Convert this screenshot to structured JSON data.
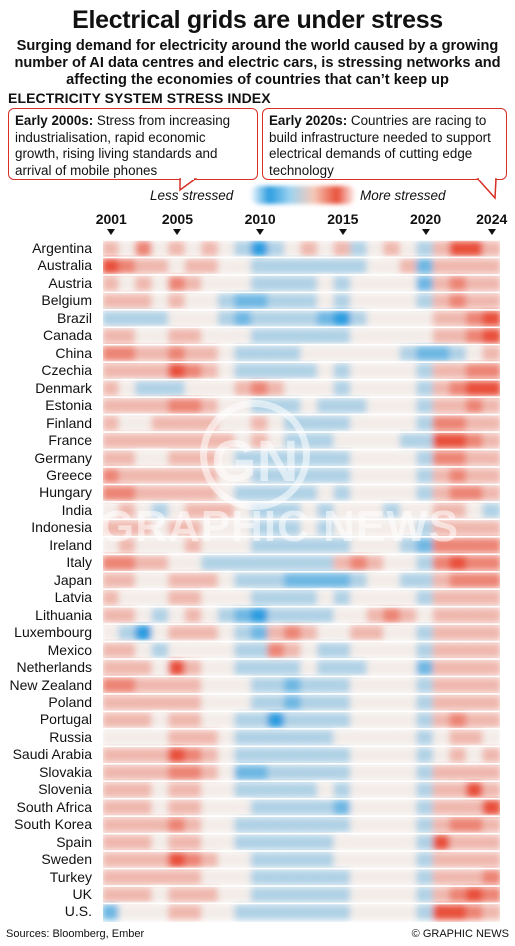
{
  "header": {
    "title": "Electrical grids are under stress",
    "subtitle": "Surging demand for electricity around the world caused by a growing number of AI data centres and electric cars, is stressing networks and affecting the economies of countries that can’t keep up",
    "section_label": "ELECTRICITY SYSTEM STRESS INDEX"
  },
  "annotations": {
    "left_bold": "Early 2000s:",
    "left_text": " Stress from increasing industrialisation, rapid economic growth, rising living standards and arrival of mobile phones",
    "right_bold": "Early 2020s:",
    "right_text": " Countries are racing to build infrastructure needed to support electrical demands of cutting edge technology"
  },
  "legend": {
    "low_label": "Less stressed",
    "high_label": "More stressed",
    "low_color": "#2b9ce0",
    "high_color": "#e8503a"
  },
  "footer": {
    "sources": "Sources: Bloomberg, Ember",
    "credit": "© GRAPHIC NEWS"
  },
  "watermark": {
    "logo": "GN",
    "text": "GRAPHIC NEWS"
  },
  "chart_data": {
    "type": "heatmap",
    "title": "ELECTRICITY SYSTEM STRESS INDEX",
    "x": [
      2001,
      2002,
      2003,
      2004,
      2005,
      2006,
      2007,
      2008,
      2009,
      2010,
      2011,
      2012,
      2013,
      2014,
      2015,
      2016,
      2017,
      2018,
      2019,
      2020,
      2021,
      2022,
      2023,
      2024
    ],
    "x_tick_labels": [
      "2001",
      "2005",
      "2010",
      "2015",
      "2020",
      "2024"
    ],
    "x_tick_values": [
      2001,
      2005,
      2010,
      2015,
      2020,
      2024
    ],
    "value_range": [
      -3,
      3
    ],
    "colors": {
      "low": "#2b9ce0",
      "mid": "#f3ece8",
      "high": "#e8503a"
    },
    "rows": [
      {
        "country": "Argentina",
        "values": [
          1,
          0,
          2,
          0,
          1,
          0,
          1,
          0,
          -1,
          -3,
          -1,
          0,
          1,
          0,
          1,
          -1,
          0,
          1,
          0,
          -1,
          1,
          3,
          3,
          1
        ]
      },
      {
        "country": "Australia",
        "values": [
          3,
          2,
          1,
          1,
          0,
          1,
          1,
          0,
          0,
          -1,
          -1,
          -1,
          -1,
          -1,
          -1,
          -1,
          0,
          0,
          1,
          -2,
          1,
          1,
          1,
          1
        ]
      },
      {
        "country": "Austria",
        "values": [
          1,
          0,
          1,
          0,
          2,
          1,
          0,
          0,
          0,
          -1,
          -1,
          -1,
          -1,
          0,
          -1,
          0,
          0,
          0,
          0,
          -2,
          1,
          2,
          1,
          1
        ]
      },
      {
        "country": "Belgium",
        "values": [
          1,
          1,
          1,
          0,
          1,
          0,
          0,
          -1,
          -2,
          -2,
          -1,
          -1,
          -1,
          0,
          -1,
          0,
          0,
          0,
          0,
          -1,
          1,
          2,
          1,
          1
        ]
      },
      {
        "country": "Brazil",
        "values": [
          -1,
          -1,
          -1,
          -1,
          0,
          0,
          0,
          -1,
          -2,
          -1,
          -1,
          -1,
          -1,
          -2,
          -3,
          -1,
          0,
          0,
          0,
          0,
          1,
          1,
          2,
          3
        ]
      },
      {
        "country": "Canada",
        "values": [
          1,
          1,
          0,
          0,
          1,
          1,
          0,
          0,
          0,
          -1,
          -1,
          -1,
          -1,
          -1,
          -1,
          0,
          0,
          0,
          0,
          0,
          1,
          1,
          2,
          3
        ]
      },
      {
        "country": "China",
        "values": [
          2,
          2,
          1,
          1,
          2,
          1,
          1,
          0,
          -1,
          -1,
          -1,
          -1,
          0,
          0,
          0,
          0,
          0,
          0,
          -1,
          -2,
          -2,
          -1,
          0,
          1
        ]
      },
      {
        "country": "Czechia",
        "values": [
          1,
          1,
          1,
          1,
          3,
          2,
          1,
          0,
          -1,
          -1,
          -1,
          -1,
          -1,
          0,
          -1,
          0,
          0,
          0,
          0,
          -1,
          1,
          1,
          2,
          2
        ]
      },
      {
        "country": "Denmark",
        "values": [
          1,
          0,
          -1,
          -1,
          -1,
          0,
          0,
          0,
          1,
          2,
          1,
          0,
          0,
          0,
          -1,
          0,
          0,
          0,
          0,
          -1,
          1,
          2,
          3,
          3
        ]
      },
      {
        "country": "Estonia",
        "values": [
          1,
          1,
          1,
          1,
          2,
          2,
          1,
          0,
          0,
          -1,
          -1,
          -1,
          0,
          -1,
          -1,
          -1,
          0,
          0,
          0,
          -1,
          1,
          1,
          2,
          1
        ]
      },
      {
        "country": "Finland",
        "values": [
          1,
          0,
          0,
          1,
          1,
          1,
          1,
          0,
          0,
          1,
          0,
          -1,
          -1,
          -1,
          -1,
          0,
          0,
          0,
          0,
          -1,
          2,
          2,
          1,
          1
        ]
      },
      {
        "country": "France",
        "values": [
          1,
          1,
          1,
          1,
          1,
          1,
          1,
          1,
          0,
          1,
          0,
          -1,
          -1,
          -1,
          0,
          0,
          0,
          0,
          -1,
          -1,
          3,
          3,
          2,
          1
        ]
      },
      {
        "country": "Germany",
        "values": [
          1,
          1,
          0,
          0,
          1,
          1,
          1,
          0,
          -1,
          -1,
          -1,
          -1,
          -1,
          -1,
          -1,
          0,
          0,
          0,
          0,
          -1,
          2,
          2,
          1,
          1
        ]
      },
      {
        "country": "Greece",
        "values": [
          2,
          1,
          1,
          1,
          1,
          1,
          1,
          0,
          0,
          -1,
          -1,
          -1,
          -1,
          -1,
          -1,
          0,
          0,
          0,
          0,
          -1,
          1,
          2,
          1,
          1
        ]
      },
      {
        "country": "Hungary",
        "values": [
          2,
          2,
          1,
          1,
          1,
          1,
          1,
          0,
          -1,
          -1,
          -1,
          -1,
          -1,
          0,
          -1,
          0,
          0,
          0,
          0,
          -1,
          1,
          2,
          2,
          1
        ]
      },
      {
        "country": "India",
        "values": [
          0,
          1,
          0,
          -1,
          0,
          1,
          1,
          1,
          0,
          -1,
          -1,
          -1,
          0,
          -1,
          0,
          0,
          0,
          -1,
          0,
          0,
          1,
          1,
          0,
          -1
        ]
      },
      {
        "country": "Indonesia",
        "values": [
          1,
          1,
          1,
          0,
          1,
          1,
          0,
          0,
          0,
          -1,
          -1,
          -1,
          0,
          -1,
          0,
          0,
          0,
          0,
          0,
          -1,
          1,
          1,
          1,
          1
        ]
      },
      {
        "country": "Ireland",
        "values": [
          0,
          1,
          0,
          0,
          0,
          1,
          0,
          0,
          0,
          -1,
          -1,
          -1,
          -1,
          -1,
          -1,
          0,
          0,
          0,
          -1,
          -2,
          2,
          2,
          2,
          2
        ]
      },
      {
        "country": "Italy",
        "values": [
          2,
          2,
          1,
          1,
          0,
          0,
          -1,
          -1,
          -1,
          -1,
          -1,
          -1,
          -1,
          -1,
          1,
          2,
          1,
          0,
          0,
          -1,
          2,
          3,
          2,
          2
        ]
      },
      {
        "country": "Japan",
        "values": [
          1,
          1,
          0,
          0,
          1,
          1,
          1,
          0,
          -1,
          -1,
          -1,
          -2,
          -2,
          -2,
          -2,
          -1,
          0,
          0,
          -1,
          -1,
          1,
          2,
          2,
          2
        ]
      },
      {
        "country": "Latvia",
        "values": [
          1,
          0,
          0,
          0,
          1,
          1,
          0,
          0,
          0,
          -1,
          -1,
          -1,
          -1,
          0,
          -1,
          0,
          0,
          0,
          0,
          -1,
          1,
          1,
          1,
          1
        ]
      },
      {
        "country": "Lithuania",
        "values": [
          1,
          1,
          0,
          -1,
          0,
          1,
          0,
          -1,
          -2,
          -3,
          -1,
          -1,
          -1,
          -1,
          0,
          0,
          1,
          2,
          1,
          0,
          1,
          1,
          1,
          1
        ]
      },
      {
        "country": "Luxembourg",
        "values": [
          0,
          -1,
          -3,
          0,
          1,
          1,
          1,
          0,
          -1,
          -2,
          1,
          2,
          1,
          0,
          0,
          1,
          1,
          0,
          0,
          -1,
          1,
          1,
          1,
          1
        ]
      },
      {
        "country": "Mexico",
        "values": [
          1,
          1,
          0,
          -1,
          0,
          0,
          0,
          0,
          -1,
          -1,
          2,
          1,
          0,
          -1,
          -1,
          0,
          0,
          0,
          0,
          -1,
          1,
          1,
          1,
          1
        ]
      },
      {
        "country": "Netherlands",
        "values": [
          1,
          1,
          1,
          0,
          3,
          1,
          0,
          0,
          -1,
          -1,
          -1,
          -1,
          0,
          -1,
          -1,
          -1,
          0,
          0,
          0,
          -2,
          1,
          1,
          1,
          1
        ]
      },
      {
        "country": "New Zealand",
        "values": [
          2,
          2,
          1,
          1,
          1,
          1,
          0,
          0,
          0,
          -1,
          -1,
          -2,
          -1,
          -1,
          -1,
          0,
          0,
          0,
          0,
          -1,
          1,
          1,
          1,
          1
        ]
      },
      {
        "country": "Poland",
        "values": [
          1,
          1,
          1,
          1,
          1,
          1,
          0,
          0,
          0,
          -1,
          -1,
          -2,
          -1,
          -1,
          -1,
          0,
          0,
          0,
          0,
          -1,
          1,
          1,
          1,
          1
        ]
      },
      {
        "country": "Portugal",
        "values": [
          1,
          1,
          1,
          0,
          1,
          1,
          0,
          0,
          -1,
          -1,
          -3,
          -1,
          -1,
          -1,
          -1,
          0,
          0,
          0,
          0,
          -1,
          1,
          2,
          1,
          1
        ]
      },
      {
        "country": "Russia",
        "values": [
          0,
          0,
          0,
          0,
          1,
          1,
          1,
          0,
          -1,
          -1,
          -1,
          -1,
          -1,
          -1,
          0,
          0,
          0,
          0,
          0,
          -1,
          0,
          1,
          1,
          0
        ]
      },
      {
        "country": "Saudi Arabia",
        "values": [
          1,
          1,
          1,
          1,
          3,
          2,
          1,
          0,
          -1,
          -1,
          -1,
          -1,
          -1,
          -1,
          -1,
          0,
          0,
          0,
          0,
          -1,
          0,
          1,
          0,
          1
        ]
      },
      {
        "country": "Slovakia",
        "values": [
          1,
          1,
          1,
          1,
          2,
          2,
          1,
          0,
          -2,
          -2,
          -1,
          -1,
          -1,
          -1,
          -1,
          0,
          0,
          0,
          0,
          -1,
          1,
          1,
          1,
          1
        ]
      },
      {
        "country": "Slovenia",
        "values": [
          1,
          1,
          1,
          0,
          1,
          1,
          0,
          0,
          -1,
          -1,
          -1,
          -1,
          -1,
          0,
          -1,
          0,
          0,
          0,
          0,
          -1,
          1,
          1,
          3,
          1
        ]
      },
      {
        "country": "South Africa",
        "values": [
          1,
          1,
          1,
          0,
          1,
          1,
          0,
          0,
          0,
          -1,
          -1,
          -1,
          -1,
          -1,
          -2,
          0,
          0,
          0,
          0,
          -1,
          1,
          1,
          1,
          3
        ]
      },
      {
        "country": "South Korea",
        "values": [
          1,
          1,
          1,
          1,
          2,
          1,
          0,
          0,
          -1,
          -1,
          -1,
          -1,
          -1,
          -1,
          -1,
          0,
          0,
          0,
          0,
          -1,
          1,
          2,
          2,
          1
        ]
      },
      {
        "country": "Spain",
        "values": [
          1,
          1,
          1,
          0,
          1,
          1,
          0,
          0,
          -1,
          -1,
          -1,
          -1,
          -1,
          -1,
          0,
          0,
          0,
          0,
          0,
          -1,
          3,
          1,
          1,
          1
        ]
      },
      {
        "country": "Sweden",
        "values": [
          1,
          1,
          1,
          1,
          3,
          2,
          1,
          0,
          0,
          -1,
          -1,
          -1,
          -1,
          -1,
          0,
          0,
          0,
          0,
          0,
          -1,
          1,
          1,
          1,
          1
        ]
      },
      {
        "country": "Turkey",
        "values": [
          1,
          1,
          1,
          1,
          1,
          1,
          0,
          0,
          0,
          -1,
          -1,
          -1,
          -1,
          -1,
          -1,
          0,
          0,
          0,
          0,
          -1,
          1,
          1,
          1,
          2
        ]
      },
      {
        "country": "UK",
        "values": [
          1,
          1,
          1,
          0,
          1,
          1,
          1,
          0,
          0,
          -1,
          -1,
          -1,
          -1,
          -1,
          -1,
          0,
          0,
          0,
          0,
          -1,
          1,
          2,
          3,
          2
        ]
      },
      {
        "country": "U.S.",
        "values": [
          -2,
          0,
          0,
          0,
          1,
          1,
          0,
          0,
          -1,
          -1,
          -1,
          -1,
          -1,
          -1,
          -1,
          0,
          0,
          0,
          0,
          -1,
          3,
          3,
          2,
          1
        ]
      }
    ]
  }
}
